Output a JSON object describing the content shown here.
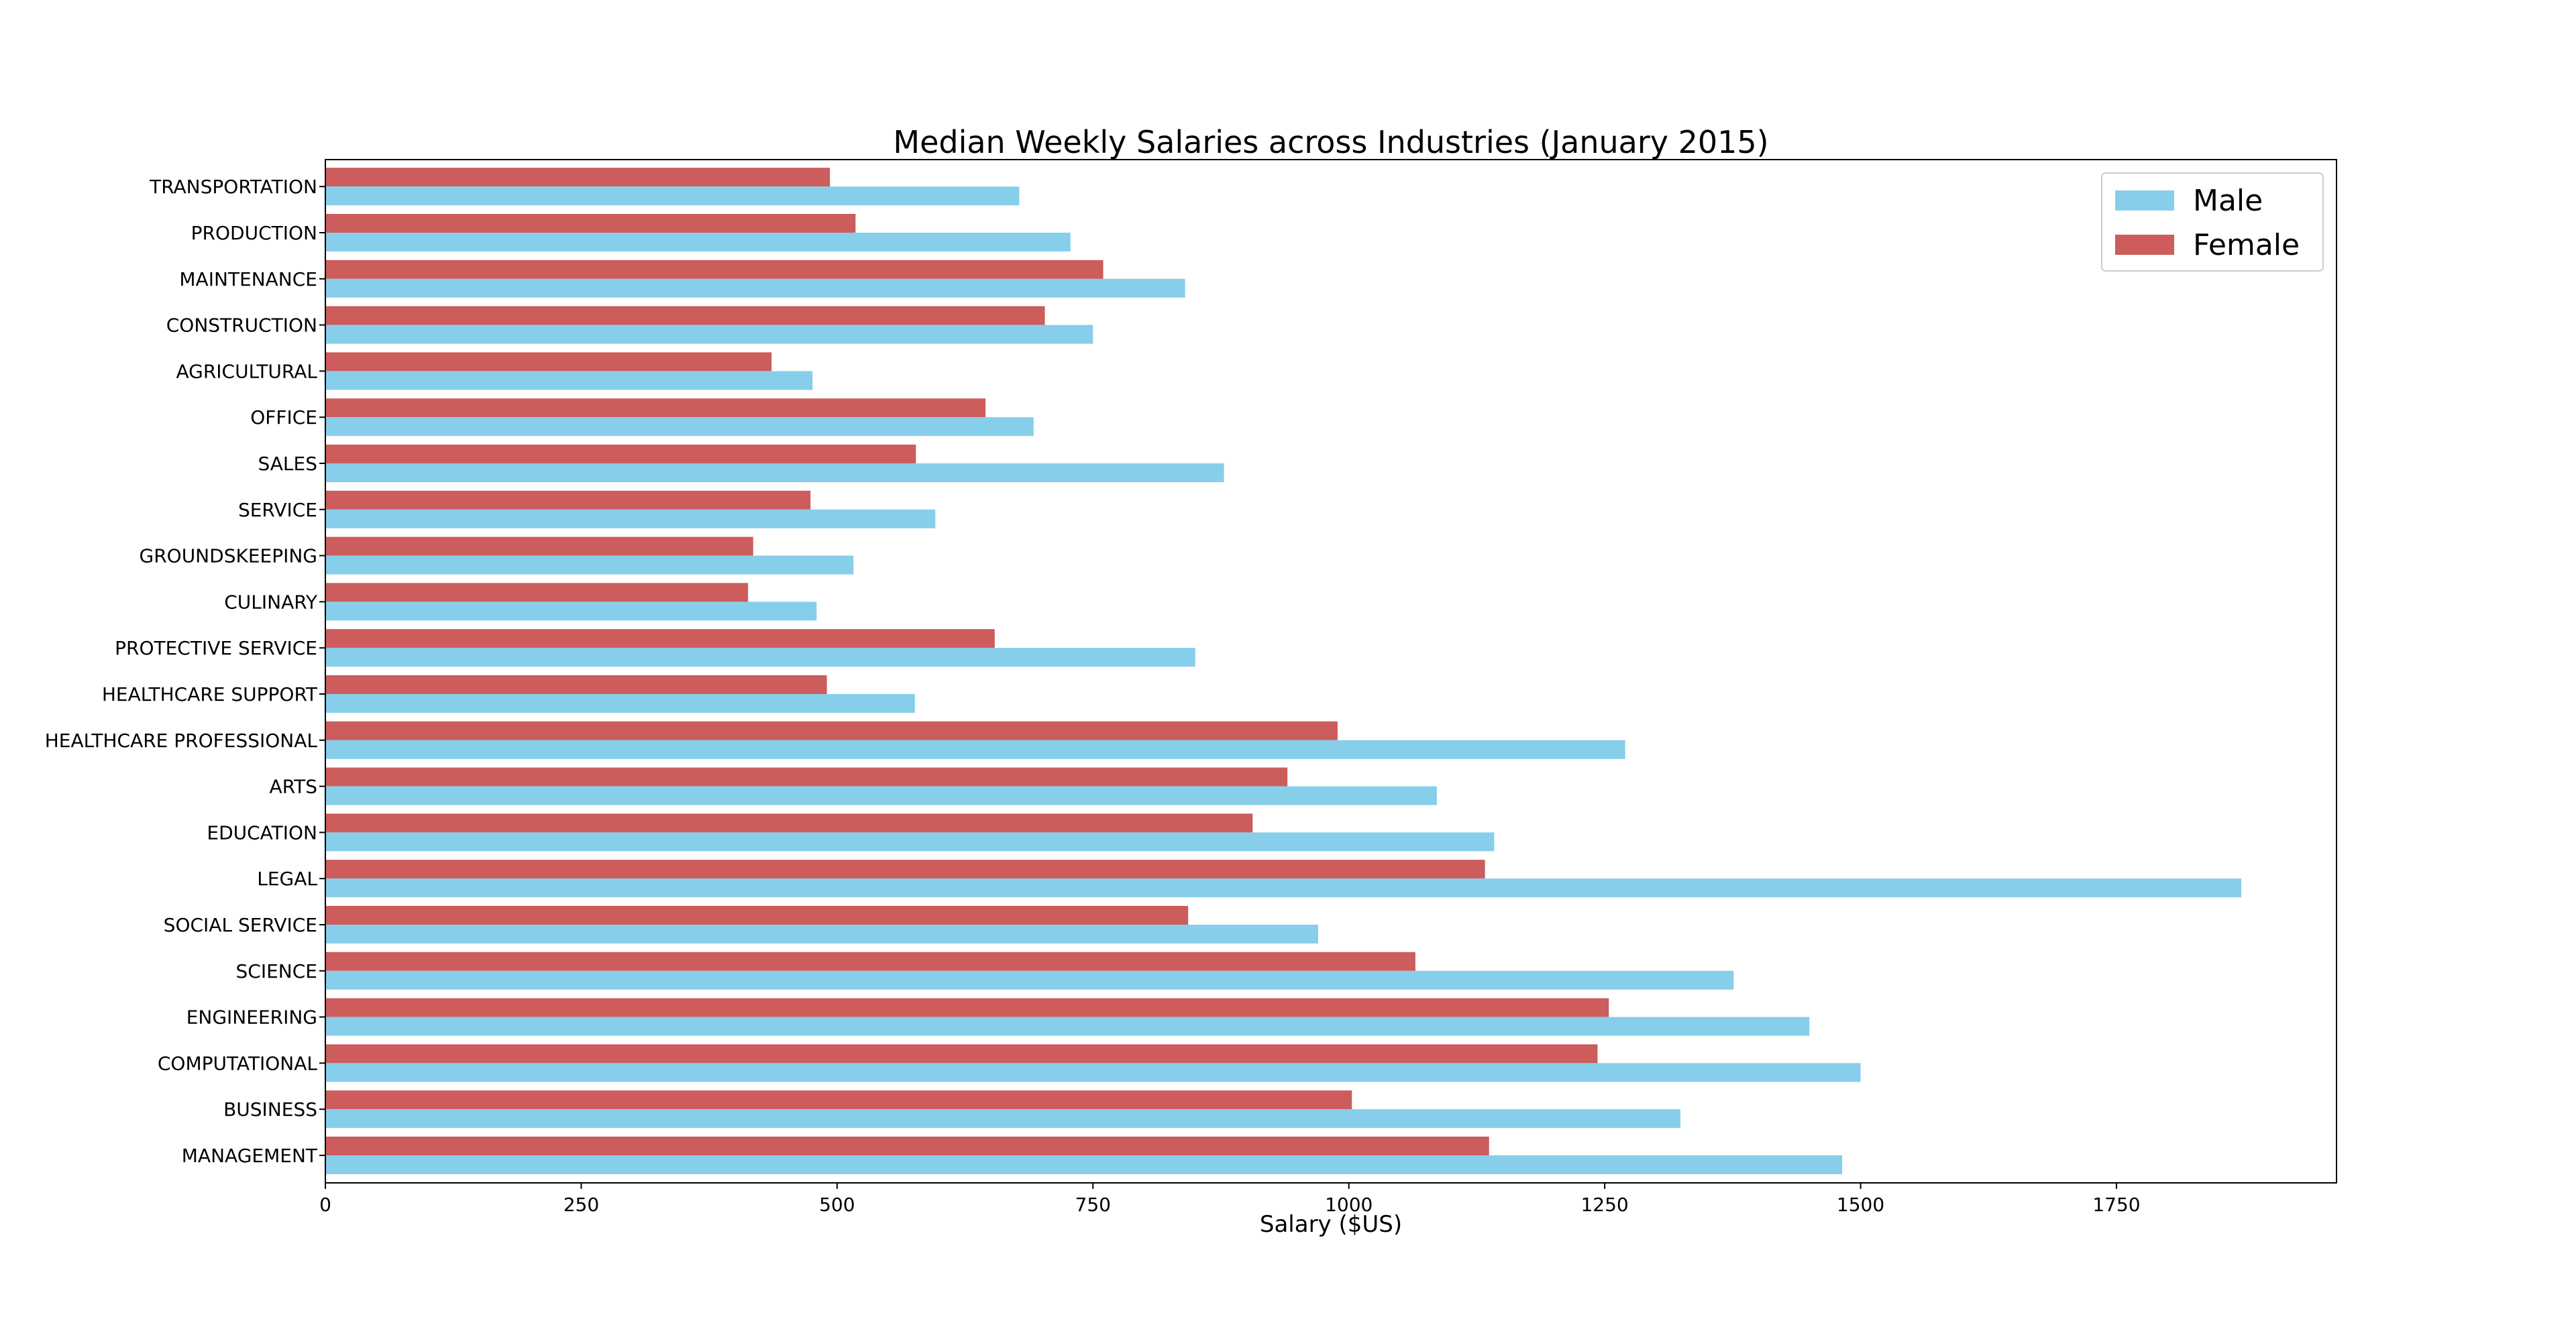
{
  "chart_data": {
    "type": "bar",
    "orientation": "horizontal",
    "title": "Median Weekly Salaries across Industries (January 2015)",
    "xlabel": "Salary ($US)",
    "ylabel": "",
    "xlim": [
      0,
      1965
    ],
    "xticks": [
      0,
      250,
      500,
      750,
      1000,
      1250,
      1500,
      1750
    ],
    "grid": false,
    "legend_position": "top-right",
    "categories": [
      "MANAGEMENT",
      "BUSINESS",
      "COMPUTATIONAL",
      "ENGINEERING",
      "SCIENCE",
      "SOCIAL SERVICE",
      "LEGAL",
      "EDUCATION",
      "ARTS",
      "HEALTHCARE PROFESSIONAL",
      "HEALTHCARE SUPPORT",
      "PROTECTIVE SERVICE",
      "CULINARY",
      "GROUNDSKEEPING",
      "SERVICE",
      "SALES",
      "OFFICE",
      "AGRICULTURAL",
      "CONSTRUCTION",
      "MAINTENANCE",
      "PRODUCTION",
      "TRANSPORTATION"
    ],
    "series": [
      {
        "name": "Male",
        "color": "#87ceeb",
        "values": [
          1482,
          1324,
          1500,
          1450,
          1376,
          970,
          1872,
          1142,
          1086,
          1270,
          576,
          850,
          480,
          516,
          596,
          878,
          692,
          476,
          750,
          840,
          728,
          678
        ]
      },
      {
        "name": "Female",
        "color": "#cd5c5c",
        "values": [
          1137,
          1003,
          1243,
          1254,
          1065,
          843,
          1133,
          906,
          940,
          989,
          490,
          654,
          413,
          418,
          474,
          577,
          645,
          436,
          703,
          760,
          518,
          493
        ]
      }
    ]
  }
}
